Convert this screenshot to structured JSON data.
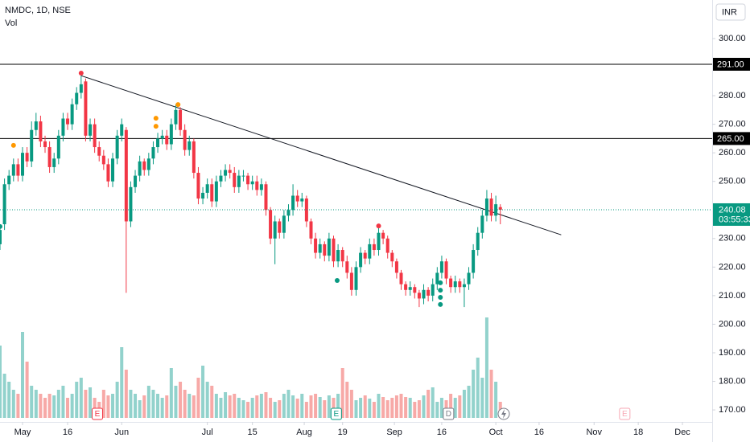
{
  "chart_data": {
    "type": "candlestick",
    "title": "NMDC, 1D, NSE",
    "subtitle": "Vol",
    "currency": "INR",
    "countdown": "03:55:33",
    "up_color": "#089981",
    "down_color": "#f23645",
    "volume_up_color": "#26a69a80",
    "volume_down_color": "#ef535080",
    "xlim": [
      0,
      158
    ],
    "ylim": [
      165.8,
      313.5
    ],
    "xticks": [
      {
        "value": 5,
        "label": "May"
      },
      {
        "value": 15,
        "label": "16"
      },
      {
        "value": 27,
        "label": "Jun"
      },
      {
        "value": 46,
        "label": "Jul"
      },
      {
        "value": 56,
        "label": "15"
      },
      {
        "value": 67.5,
        "label": "Aug"
      },
      {
        "value": 76,
        "label": "19"
      },
      {
        "value": 87.5,
        "label": "Sep"
      },
      {
        "value": 98,
        "label": "16"
      },
      {
        "value": 110,
        "label": "Oct"
      },
      {
        "value": 119.6,
        "label": "16"
      },
      {
        "value": 131.8,
        "label": "Nov"
      },
      {
        "value": 141.6,
        "label": "18"
      },
      {
        "value": 151.4,
        "label": "Dec"
      }
    ],
    "yticks": [
      {
        "value": 300,
        "label": "300.00"
      },
      {
        "value": 280,
        "label": "280.00"
      },
      {
        "value": 270,
        "label": "270.00"
      },
      {
        "value": 260,
        "label": "260.00"
      },
      {
        "value": 250,
        "label": "250.00"
      },
      {
        "value": 230,
        "label": "230.00"
      },
      {
        "value": 220,
        "label": "220.00"
      },
      {
        "value": 210,
        "label": "210.00"
      },
      {
        "value": 200,
        "label": "200.00"
      },
      {
        "value": 190,
        "label": "190.00"
      },
      {
        "value": 180,
        "label": "180.00"
      },
      {
        "value": 170,
        "label": "170.00"
      }
    ],
    "open": [
      228,
      235,
      249,
      252,
      256,
      252,
      260,
      257,
      268,
      271,
      264,
      262,
      255,
      258,
      266,
      272,
      270,
      277,
      281,
      285,
      266,
      270,
      262,
      259,
      256,
      250,
      258,
      266,
      268,
      236,
      248,
      252,
      257,
      254,
      258,
      262,
      265,
      266,
      263,
      270,
      275,
      268,
      261,
      264,
      253,
      244,
      246,
      249,
      243,
      250,
      252,
      254,
      253,
      248,
      252,
      252,
      249,
      250,
      247,
      249,
      240,
      230,
      236,
      232,
      238,
      240,
      245,
      243,
      244,
      236,
      230,
      225,
      228,
      224,
      230,
      222,
      226,
      222,
      218,
      212,
      220,
      225,
      223,
      228,
      226,
      232,
      230,
      225,
      222,
      218,
      214,
      212,
      213,
      211,
      209,
      212,
      210,
      214,
      218,
      222,
      216,
      213,
      215,
      213,
      214,
      218,
      226,
      232,
      238,
      244,
      238,
      241
    ],
    "high": [
      235,
      251,
      254,
      258,
      258,
      262,
      262,
      271,
      274,
      273,
      266,
      264,
      260,
      268,
      274,
      274,
      279,
      283,
      287,
      286,
      272,
      272,
      264,
      261,
      258,
      260,
      268,
      272,
      269,
      250,
      254,
      259,
      258,
      260,
      264,
      267,
      268,
      268,
      272,
      277,
      276,
      270,
      266,
      265,
      255,
      248,
      251,
      251,
      252,
      254,
      256,
      256,
      255,
      254,
      254,
      253,
      252,
      252,
      251,
      250,
      241,
      238,
      237,
      240,
      242,
      249,
      247,
      246,
      245,
      237,
      232,
      230,
      229,
      232,
      231,
      228,
      227,
      224,
      220,
      222,
      227,
      226,
      230,
      230,
      234,
      233,
      231,
      226,
      223,
      219,
      215,
      215,
      214,
      212,
      214,
      213,
      216,
      220,
      224,
      223,
      217,
      217,
      216,
      216,
      220,
      228,
      234,
      240,
      247,
      246,
      245,
      242
    ],
    "low": [
      226,
      233,
      247,
      250,
      250,
      250,
      255,
      255,
      266,
      262,
      260,
      253,
      253,
      256,
      264,
      268,
      268,
      275,
      279,
      264,
      264,
      260,
      257,
      254,
      248,
      248,
      256,
      264,
      211,
      234,
      246,
      250,
      252,
      252,
      256,
      260,
      263,
      261,
      261,
      268,
      266,
      259,
      259,
      251,
      242,
      242,
      244,
      241,
      241,
      248,
      250,
      251,
      246,
      246,
      250,
      247,
      247,
      245,
      245,
      238,
      228,
      221,
      230,
      230,
      236,
      238,
      241,
      241,
      234,
      228,
      223,
      223,
      222,
      222,
      220,
      220,
      220,
      216,
      210,
      210,
      218,
      221,
      221,
      224,
      224,
      228,
      223,
      220,
      216,
      212,
      210,
      210,
      209,
      206,
      207,
      208,
      208,
      212,
      216,
      214,
      211,
      211,
      211,
      206,
      212,
      216,
      224,
      230,
      236,
      236,
      236,
      235
    ],
    "close": [
      233,
      249,
      252,
      256,
      252,
      260,
      257,
      268,
      271,
      264,
      262,
      255,
      258,
      266,
      272,
      270,
      277,
      281,
      284,
      266,
      270,
      262,
      259,
      256,
      250,
      258,
      266,
      270,
      236,
      248,
      252,
      257,
      254,
      258,
      262,
      265,
      266,
      263,
      270,
      275,
      268,
      261,
      264,
      253,
      244,
      246,
      249,
      243,
      250,
      252,
      254,
      253,
      248,
      252,
      252,
      249,
      250,
      247,
      249,
      240,
      230,
      236,
      232,
      238,
      240,
      245,
      243,
      244,
      236,
      230,
      225,
      228,
      224,
      230,
      222,
      226,
      222,
      218,
      212,
      220,
      225,
      223,
      228,
      226,
      232,
      230,
      225,
      222,
      218,
      214,
      212,
      213,
      211,
      209,
      212,
      210,
      214,
      218,
      222,
      216,
      213,
      215,
      213,
      214,
      218,
      226,
      232,
      238,
      244,
      238,
      242,
      240.08
    ],
    "volume": [
      90,
      55,
      45,
      35,
      30,
      107,
      70,
      40,
      35,
      30,
      25,
      30,
      28,
      35,
      40,
      25,
      30,
      45,
      50,
      35,
      38,
      25,
      20,
      35,
      28,
      30,
      45,
      88,
      60,
      35,
      30,
      22,
      28,
      40,
      35,
      30,
      25,
      28,
      62,
      40,
      45,
      35,
      30,
      28,
      50,
      65,
      45,
      40,
      30,
      25,
      32,
      28,
      30,
      25,
      22,
      20,
      25,
      28,
      30,
      32,
      25,
      20,
      22,
      30,
      35,
      28,
      24,
      30,
      20,
      28,
      30,
      26,
      22,
      28,
      25,
      30,
      62,
      45,
      35,
      22,
      25,
      28,
      24,
      20,
      30,
      26,
      22,
      25,
      28,
      30,
      26,
      25,
      20,
      22,
      28,
      35,
      38,
      20,
      25,
      22,
      30,
      25,
      28,
      35,
      40,
      60,
      75,
      50,
      125,
      60,
      45,
      20
    ],
    "hlines": [
      {
        "value": 291,
        "label": "291.00"
      },
      {
        "value": 265,
        "label": "265.00"
      }
    ],
    "trendline": {
      "x": [
        18,
        124.5
      ],
      "y": [
        287,
        231.3
      ]
    },
    "markers": [
      {
        "x": 18,
        "y": 287.9,
        "color": "#f23645"
      },
      {
        "x": 84,
        "y": 234.4,
        "color": "#f23645"
      },
      {
        "x": 3,
        "y": 262.6,
        "color": "#ff9800"
      },
      {
        "x": 34.6,
        "y": 272.1,
        "color": "#ff9800"
      },
      {
        "x": 34.6,
        "y": 269.3,
        "color": "#ff9800"
      },
      {
        "x": 39.5,
        "y": 276.9,
        "color": "#ff9800"
      },
      {
        "x": 0,
        "y": 234.2,
        "color": "#089981"
      },
      {
        "x": 74.8,
        "y": 215.3,
        "color": "#089981"
      },
      {
        "x": 97.7,
        "y": 214.5,
        "color": "#089981"
      },
      {
        "x": 97.7,
        "y": 211.9,
        "color": "#089981"
      },
      {
        "x": 97.7,
        "y": 209.4,
        "color": "#089981"
      },
      {
        "x": 97.7,
        "y": 206.9,
        "color": "#089981"
      }
    ],
    "events": [
      {
        "x": 21.6,
        "label": "E",
        "color": "#f23645"
      },
      {
        "x": 74.6,
        "label": "E",
        "color": "#089981"
      },
      {
        "x": 99.5,
        "label": "D",
        "color": "#787b86"
      },
      {
        "x": 138.6,
        "label": "E",
        "color": "#f7a8b4"
      }
    ]
  }
}
